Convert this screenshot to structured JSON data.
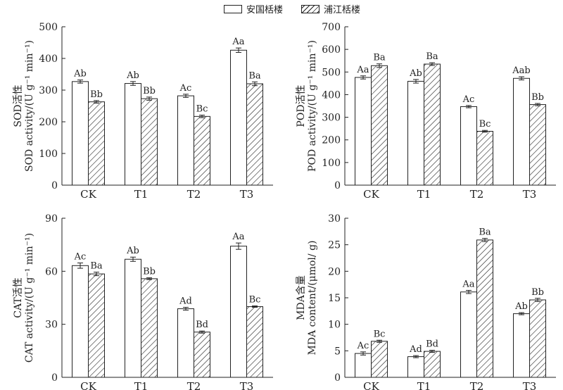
{
  "legend": {
    "series1": "安国栝楼",
    "series2": "浦江栝楼"
  },
  "colors": {
    "series1_fill": "#ffffff",
    "series2_fill": "hatched",
    "stroke": "#222222"
  },
  "chart_data": [
    {
      "type": "bar",
      "panel": "top-left",
      "categories": [
        "CK",
        "T1",
        "T2",
        "T3"
      ],
      "ylabel_lines": [
        "SOD活性",
        "SOD activity/(U g⁻¹ min⁻¹)"
      ],
      "ylim": [
        0,
        500
      ],
      "yticks": [
        0,
        100,
        200,
        300,
        400,
        500
      ],
      "series": [
        {
          "name": "安国栝楼",
          "values": [
            327,
            321,
            282,
            426
          ],
          "errors": [
            5,
            6,
            5,
            7
          ],
          "labels": [
            "Ab",
            "Ab",
            "Ac",
            "Aa"
          ]
        },
        {
          "name": "浦江栝楼",
          "values": [
            263,
            273,
            217,
            320
          ],
          "errors": [
            4,
            5,
            4,
            6
          ],
          "labels": [
            "Bb",
            "Bb",
            "Bc",
            "Ba"
          ]
        }
      ]
    },
    {
      "type": "bar",
      "panel": "top-right",
      "categories": [
        "CK",
        "T1",
        "T2",
        "T3"
      ],
      "ylabel_lines": [
        "POD活性",
        "POD activity/(U g⁻¹ min⁻¹)"
      ],
      "ylim": [
        0,
        700
      ],
      "yticks": [
        0,
        100,
        200,
        300,
        400,
        500,
        600,
        700
      ],
      "series": [
        {
          "name": "安国栝楼",
          "values": [
            476,
            459,
            347,
            472
          ],
          "errors": [
            7,
            8,
            5,
            7
          ],
          "labels": [
            "Aa",
            "Ab",
            "Ac",
            "Aab"
          ]
        },
        {
          "name": "浦江栝楼",
          "values": [
            528,
            535,
            238,
            356
          ],
          "errors": [
            8,
            6,
            4,
            5
          ],
          "labels": [
            "Ba",
            "Ba",
            "Bc",
            "Bb"
          ]
        }
      ]
    },
    {
      "type": "bar",
      "panel": "bottom-left",
      "categories": [
        "CK",
        "T1",
        "T2",
        "T3"
      ],
      "ylabel_lines": [
        "CAT活性",
        "CAT activity/(U g⁻¹ min⁻¹)"
      ],
      "ylim": [
        0,
        90
      ],
      "yticks": [
        0,
        30,
        60,
        90
      ],
      "series": [
        {
          "name": "安国栝楼",
          "values": [
            63.2,
            66.8,
            38.8,
            74.2
          ],
          "errors": [
            1.5,
            1.2,
            0.8,
            1.8
          ],
          "labels": [
            "Ac",
            "Ab",
            "Ad",
            "Aa"
          ]
        },
        {
          "name": "浦江栝楼",
          "values": [
            58.5,
            55.8,
            25.6,
            40.0
          ],
          "errors": [
            1.0,
            0.5,
            0.6,
            0.4
          ],
          "labels": [
            "Ba",
            "Bb",
            "Bd",
            "Bc"
          ]
        }
      ]
    },
    {
      "type": "bar",
      "panel": "bottom-right",
      "categories": [
        "CK",
        "T1",
        "T2",
        "T3"
      ],
      "ylabel_lines": [
        "MDA含量",
        "MDA content/(μmol/ g)"
      ],
      "ylim": [
        0,
        30
      ],
      "yticks": [
        0,
        5,
        10,
        15,
        20,
        25,
        30
      ],
      "series": [
        {
          "name": "安国栝楼",
          "values": [
            4.5,
            3.9,
            16.1,
            12.0
          ],
          "errors": [
            0.3,
            0.2,
            0.3,
            0.2
          ],
          "labels": [
            "Ac",
            "Ad",
            "Aa",
            "Ab"
          ]
        },
        {
          "name": "浦江栝楼",
          "values": [
            6.8,
            4.9,
            25.9,
            14.6
          ],
          "errors": [
            0.2,
            0.2,
            0.3,
            0.3
          ],
          "labels": [
            "Bc",
            "Bd",
            "Ba",
            "Bb"
          ]
        }
      ]
    }
  ]
}
